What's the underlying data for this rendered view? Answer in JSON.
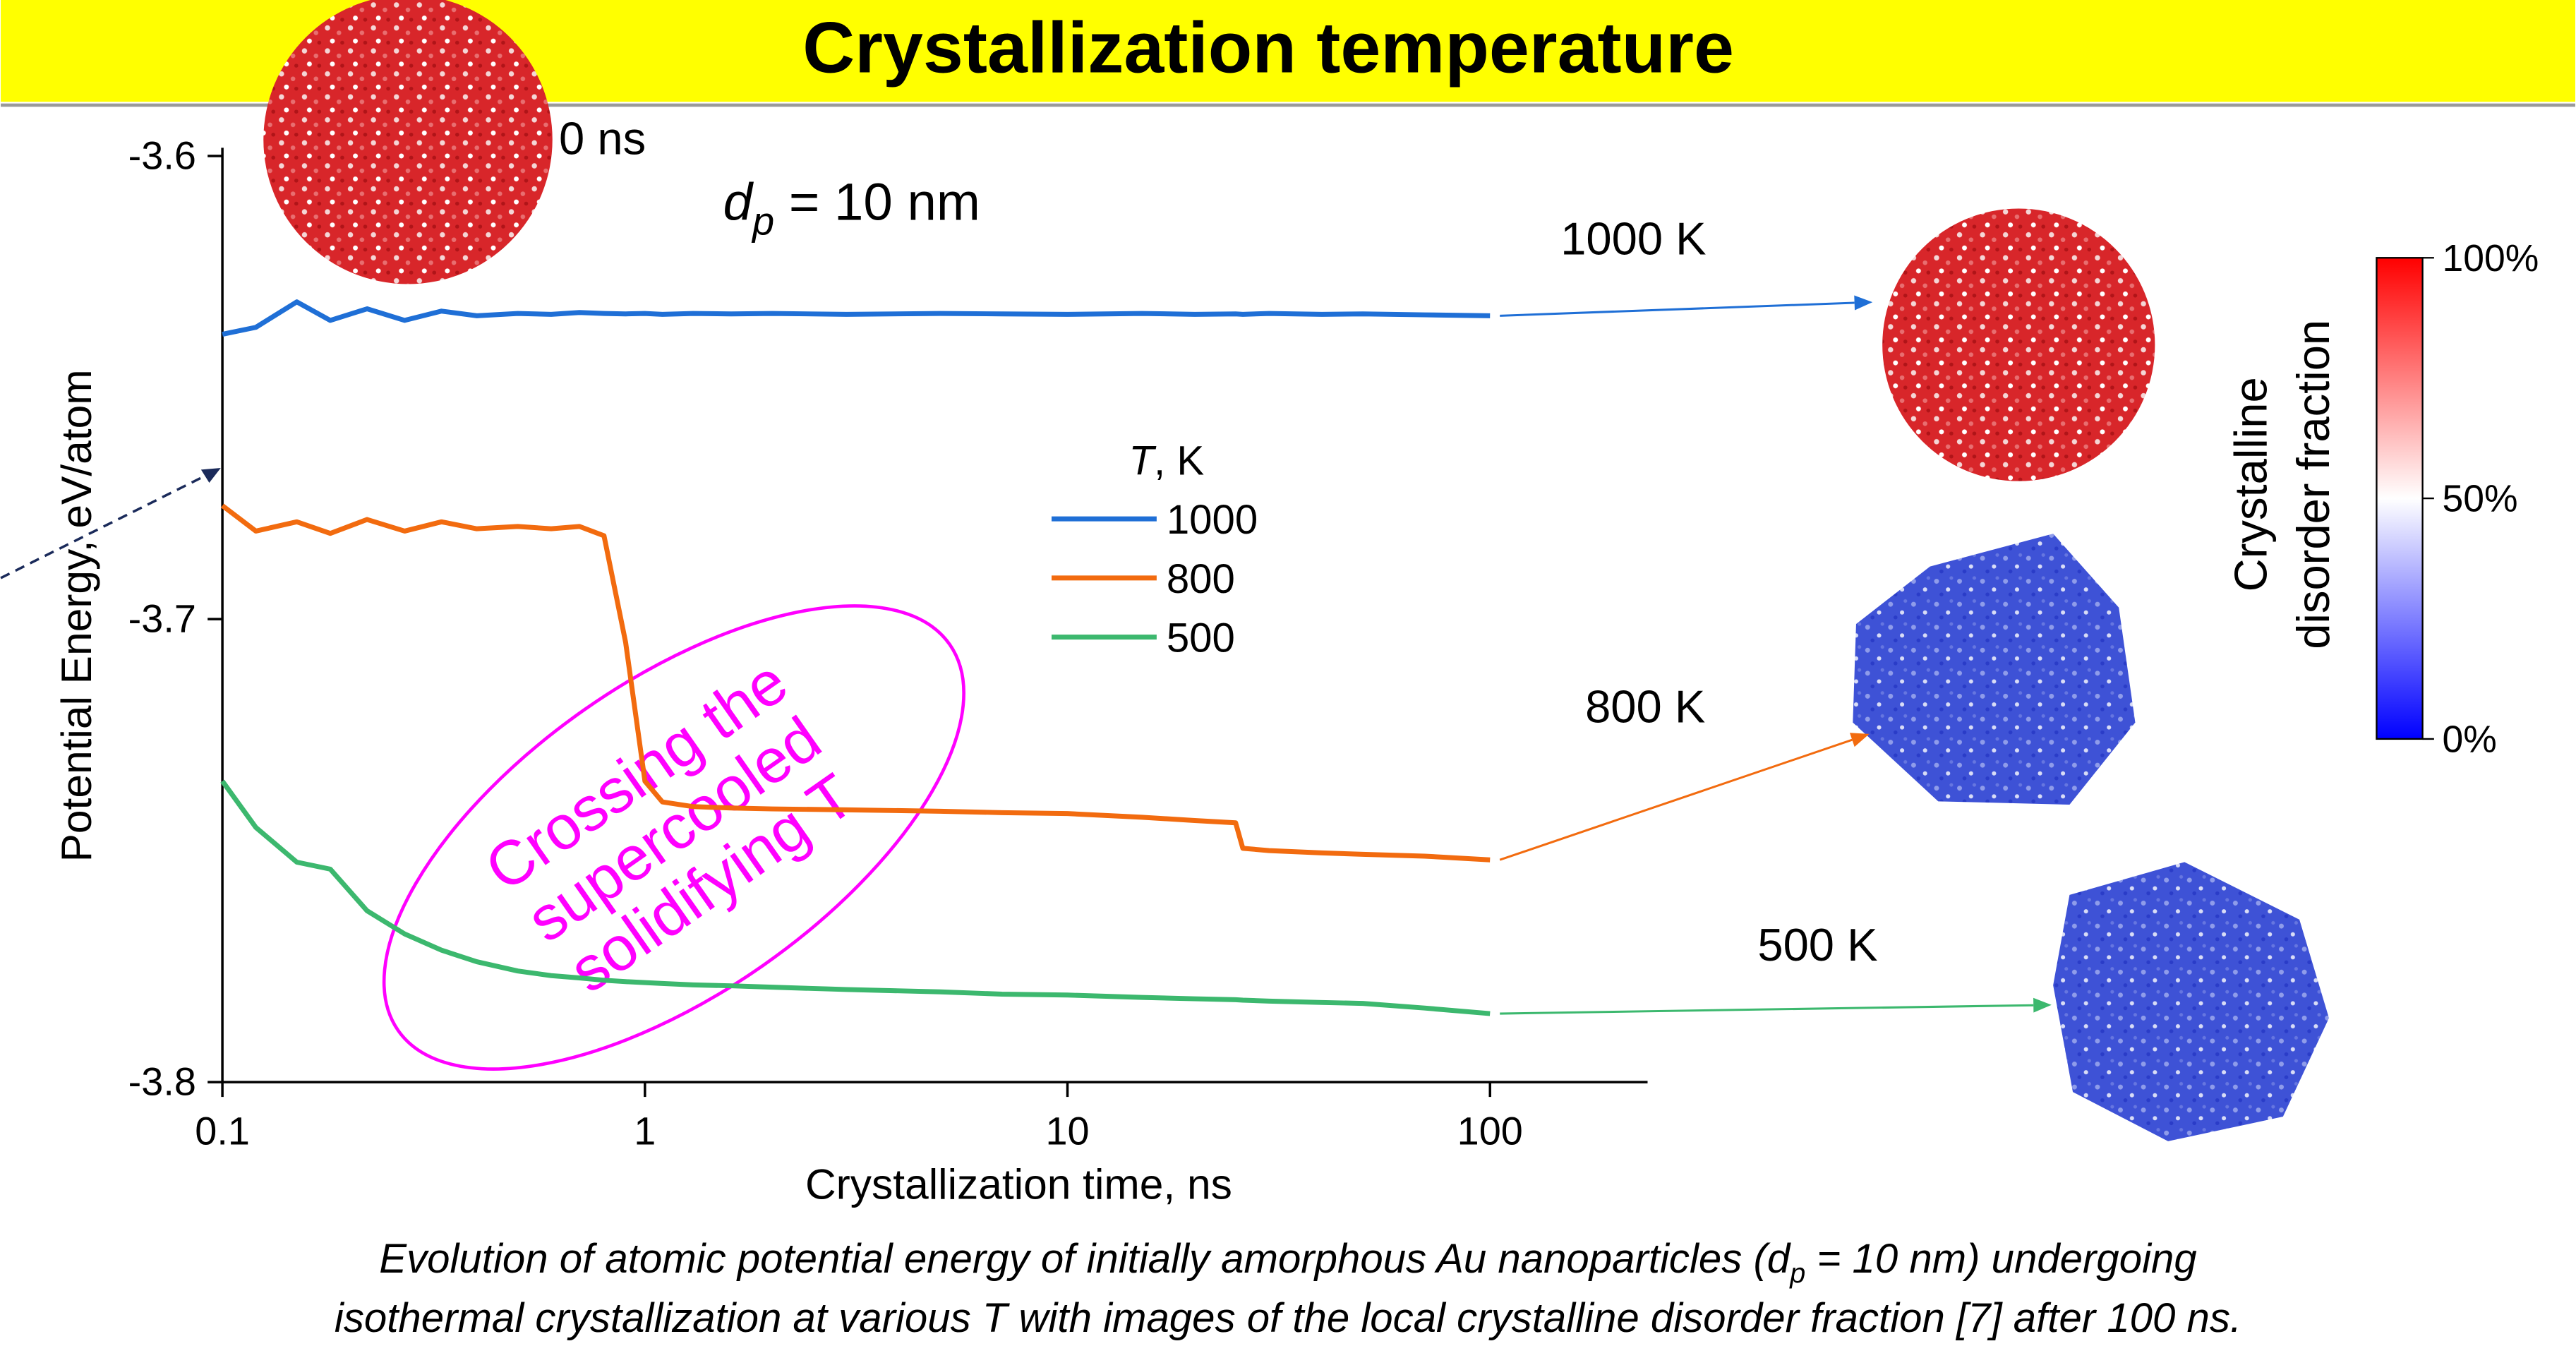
{
  "title": "Crystallization temperature",
  "caption": {
    "line1": [
      "Evolution of atomic potential energy of initially amorphous Au nanoparticles (d",
      "p",
      " = 10 nm) undergoing"
    ],
    "line2": "isothermal crystallization at various T with images of the local crystalline disorder fraction [7] after 100 ns."
  },
  "chart_data": {
    "type": "line",
    "x_label": "Crystallization time, ns",
    "y_label": "Potential Energy, eV/atom",
    "xscale": "log",
    "xlim": [
      0.1,
      236
    ],
    "xticks": [
      0.1,
      1,
      10,
      100
    ],
    "ylim": [
      -3.8,
      -3.6
    ],
    "yticks": [
      -3.8,
      -3.7,
      -3.6
    ],
    "legend_title": [
      "T",
      ", K"
    ],
    "x": [
      0.1,
      0.12,
      0.15,
      0.18,
      0.22,
      0.27,
      0.33,
      0.4,
      0.5,
      0.6,
      0.7,
      0.8,
      0.9,
      1,
      1.1,
      1.3,
      1.6,
      2,
      3,
      5,
      7,
      10,
      15,
      20,
      25,
      26,
      30,
      40,
      50,
      70,
      100
    ],
    "series": [
      {
        "name": "1000",
        "color": "#1f6fd6",
        "values": [
          -3.6385,
          -3.637,
          -3.6315,
          -3.6355,
          -3.633,
          -3.6355,
          -3.6335,
          -3.6345,
          -3.634,
          -3.6342,
          -3.6338,
          -3.634,
          -3.6341,
          -3.634,
          -3.6342,
          -3.634,
          -3.6341,
          -3.634,
          -3.6342,
          -3.634,
          -3.6341,
          -3.6342,
          -3.634,
          -3.6342,
          -3.6341,
          -3.6342,
          -3.634,
          -3.6342,
          -3.6341,
          -3.6343,
          -3.6345
        ]
      },
      {
        "name": "800",
        "color": "#f26b0f",
        "values": [
          -3.6755,
          -3.681,
          -3.679,
          -3.6815,
          -3.6785,
          -3.681,
          -3.679,
          -3.6805,
          -3.68,
          -3.6805,
          -3.68,
          -3.682,
          -3.705,
          -3.735,
          -3.7395,
          -3.7405,
          -3.7408,
          -3.741,
          -3.7412,
          -3.7415,
          -3.7418,
          -3.742,
          -3.7428,
          -3.7435,
          -3.744,
          -3.7495,
          -3.75,
          -3.7505,
          -3.7508,
          -3.7512,
          -3.752
        ]
      },
      {
        "name": "500",
        "color": "#3cb86e",
        "values": [
          -3.735,
          -3.745,
          -3.7525,
          -3.754,
          -3.763,
          -3.768,
          -3.7715,
          -3.774,
          -3.776,
          -3.777,
          -3.7775,
          -3.778,
          -3.7783,
          -3.7785,
          -3.7787,
          -3.779,
          -3.7792,
          -3.7795,
          -3.78,
          -3.7805,
          -3.781,
          -3.7812,
          -3.7817,
          -3.782,
          -3.7822,
          -3.7823,
          -3.7825,
          -3.7828,
          -3.783,
          -3.784,
          -3.7852
        ]
      }
    ],
    "annotations": {
      "time": "0 ns",
      "diameter": [
        "d",
        "p",
        " = 10 nm"
      ],
      "particle_labels": [
        "1000 K",
        "800 K",
        "500 K"
      ],
      "region": [
        "Crossing the",
        "supercooled",
        "solidifying T"
      ]
    },
    "colorbar": {
      "title": [
        "Crystalline",
        "disorder fraction"
      ],
      "range": [
        0,
        100
      ],
      "colors": [
        "#0000ff",
        "#ffffff",
        "#ff0000"
      ],
      "ticks": [
        {
          "value": 0,
          "label": "0%"
        },
        {
          "value": 50,
          "label": "50%"
        },
        {
          "value": 100,
          "label": "100%"
        }
      ]
    }
  }
}
